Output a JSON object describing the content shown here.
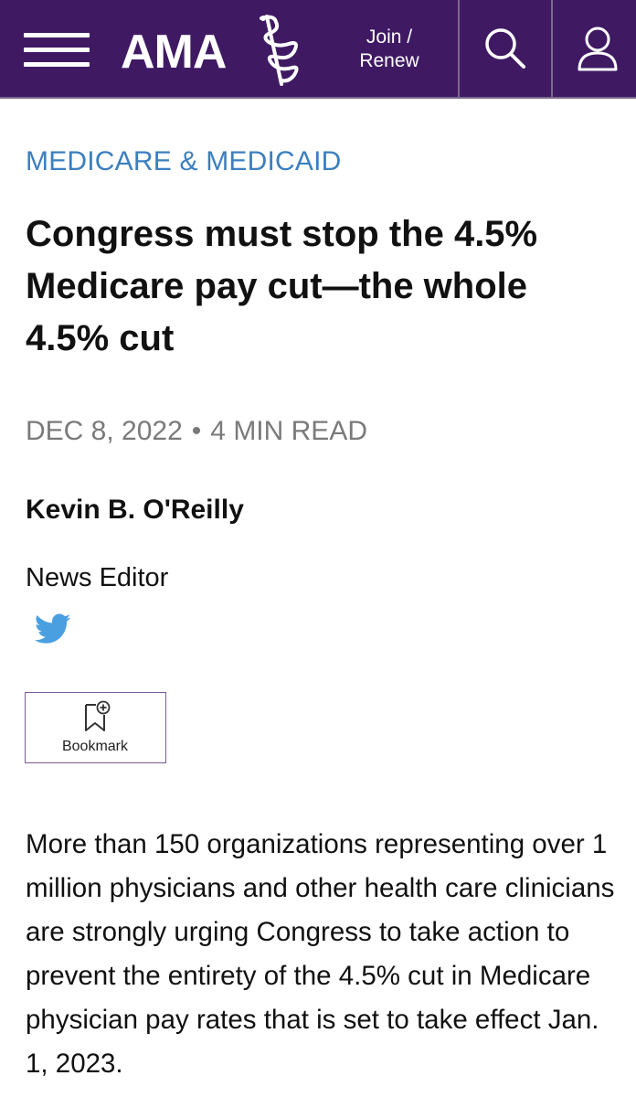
{
  "header": {
    "logo_text": "AMA",
    "join_line1": "Join /",
    "join_line2": "Renew",
    "background_color": "#3f1a63"
  },
  "icons": {
    "menu": "hamburger-menu-icon",
    "search": "search-icon",
    "account": "user-icon",
    "social": "twitter-icon",
    "bookmark": "bookmark-add-icon"
  },
  "article": {
    "category": "MEDICARE & MEDICAID",
    "category_color": "#3b7fc0",
    "headline": "Congress must stop the 4.5% Medicare pay cut—the whole 4.5% cut",
    "date": "DEC 8, 2022",
    "separator": "•",
    "read_time": "4 MIN READ",
    "author_name": "Kevin B. O'Reilly",
    "author_role": "News Editor",
    "bookmark_label": "Bookmark",
    "body": "More than 150 organizations representing over 1 million physicians and other health care clinicians are strongly urging Congress to take action to prevent the entirety of the 4.5% cut in Medicare physician pay rates that is set to take effect Jan. 1, 2023."
  }
}
